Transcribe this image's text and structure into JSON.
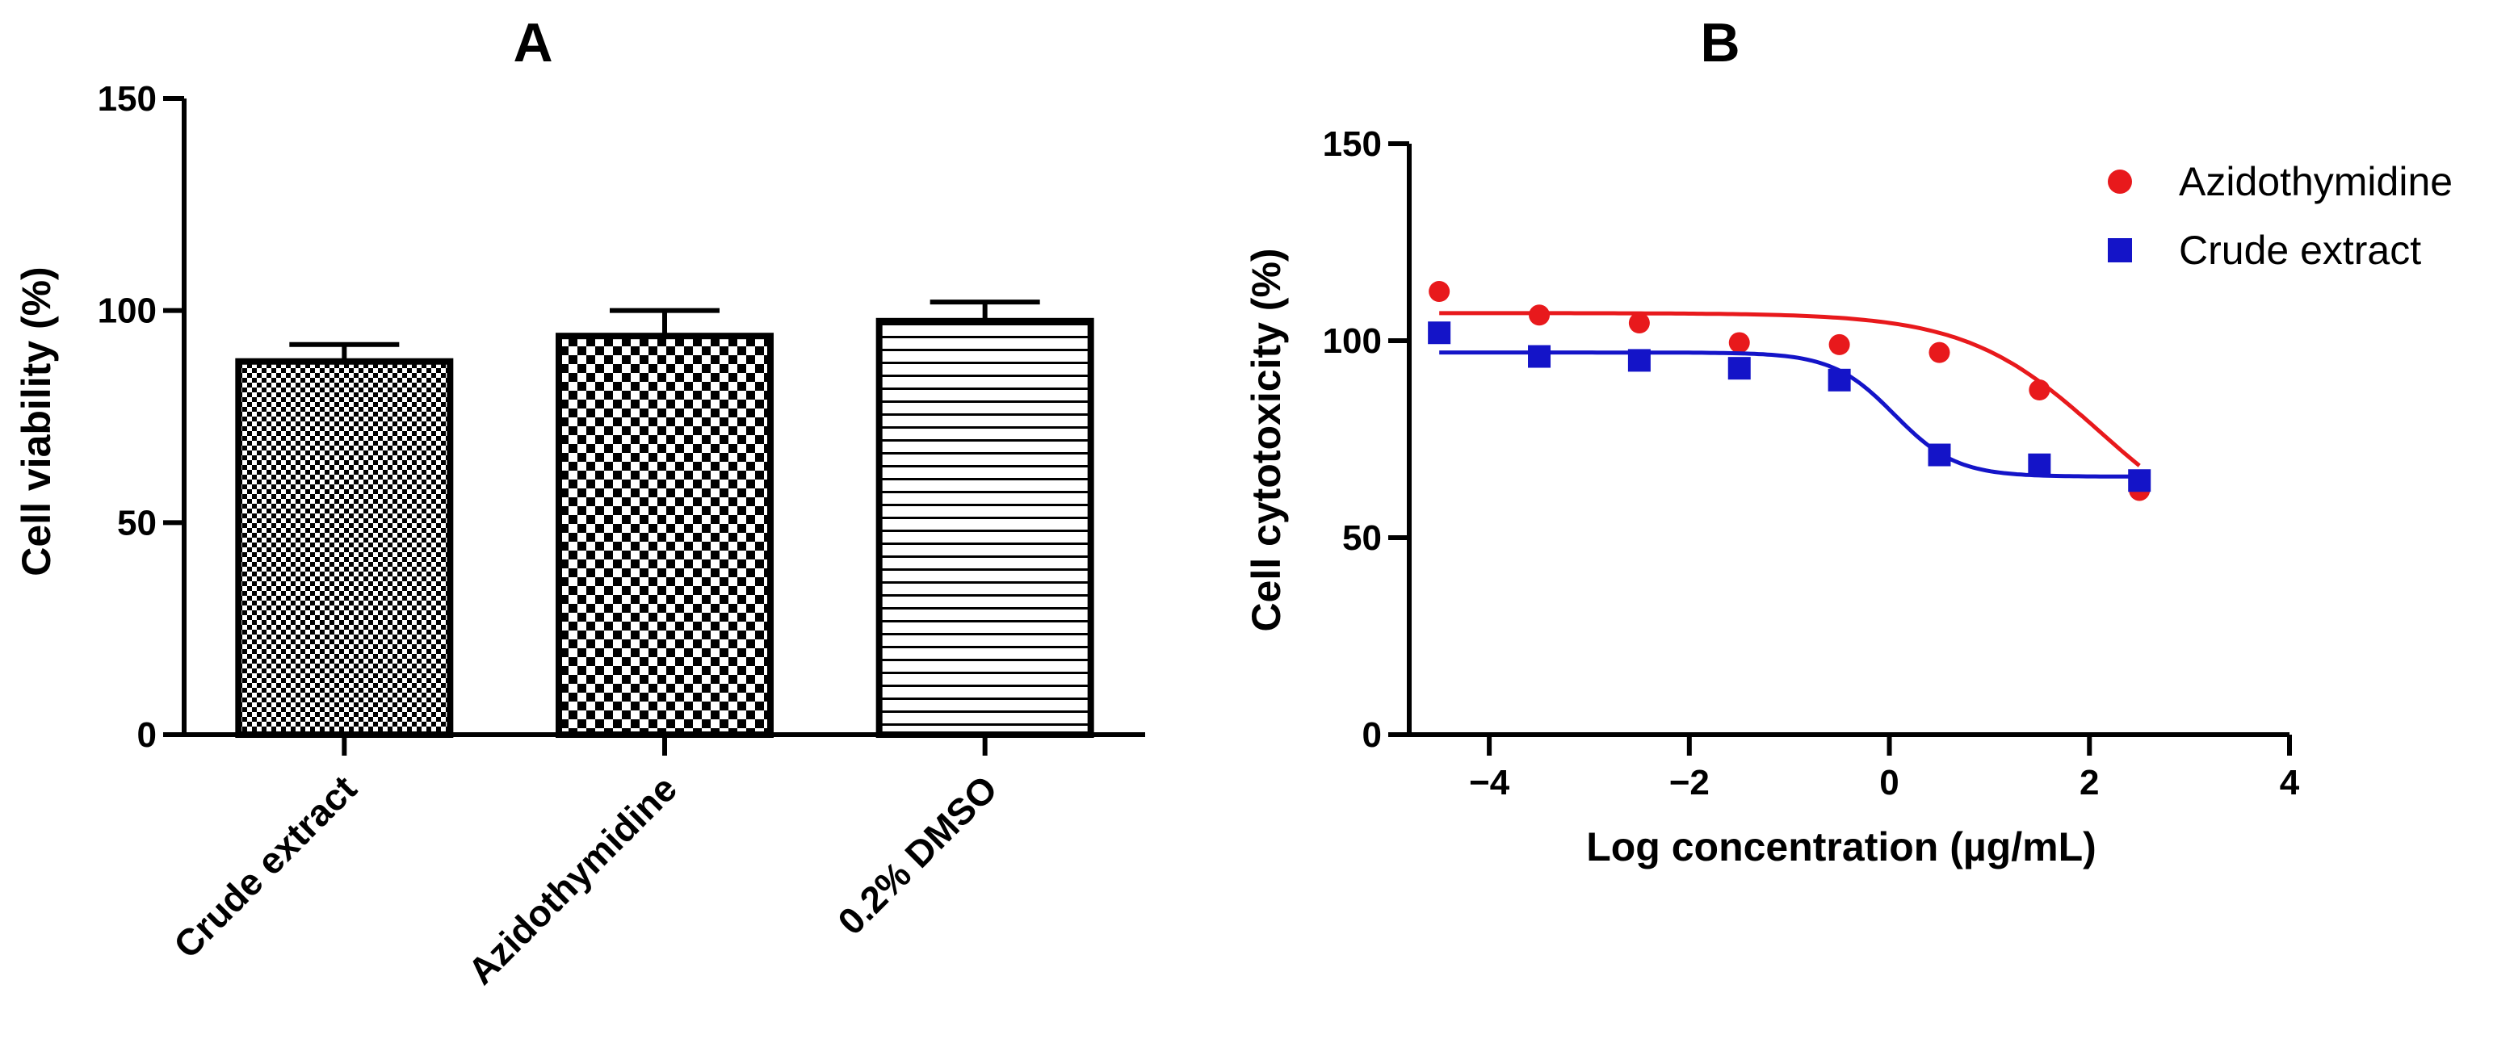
{
  "chart_data": [
    {
      "panel": "A",
      "type": "bar",
      "title": "A",
      "ylabel": "Cell viability (%)",
      "xlabel": "",
      "ylim": [
        0,
        150
      ],
      "yticks": [
        0,
        50,
        100,
        150
      ],
      "categories": [
        "Crude extract",
        "Azidothymidine",
        "0.2% DMSO"
      ],
      "values": [
        88,
        94,
        97.5
      ],
      "errors": [
        4,
        6,
        4.5
      ],
      "patterns": [
        "fine-checker",
        "coarse-checker",
        "horizontal-lines"
      ]
    },
    {
      "panel": "B",
      "type": "scatter",
      "title": "B",
      "xlabel": "Log concentration (µg/mL)",
      "ylabel": "Cell cytotoxicity (%)",
      "xlim": [
        -4.8,
        4
      ],
      "ylim": [
        0,
        150
      ],
      "xticks": [
        -4,
        -2,
        0,
        2,
        4
      ],
      "xtick_labels": [
        "−4",
        "−2",
        "0",
        "2",
        "4"
      ],
      "yticks": [
        0,
        50,
        100,
        150
      ],
      "legend_position": "top-right",
      "series": [
        {
          "name": "Azidothymidine",
          "color": "#e8191c",
          "marker": "circle",
          "x": [
            -4.5,
            -3.5,
            -2.5,
            -1.5,
            -0.5,
            0.5,
            1.5,
            2.5
          ],
          "y": [
            112.5,
            106.5,
            104.5,
            99.5,
            99,
            97,
            87.5,
            62
          ],
          "fit": {
            "top": 107,
            "bottom": 47,
            "logEC50": 2.1,
            "hill": 0.65
          }
        },
        {
          "name": "Crude extract",
          "color": "#1414c8",
          "marker": "square",
          "x": [
            -4.5,
            -3.5,
            -2.5,
            -1.5,
            -0.5,
            0.5,
            1.5,
            2.5
          ],
          "y": [
            102,
            96,
            95,
            93,
            90,
            71,
            68.5,
            64.5
          ],
          "fit": {
            "top": 97,
            "bottom": 65.5,
            "logEC50": 0.05,
            "hill": 1.4
          }
        }
      ]
    }
  ]
}
